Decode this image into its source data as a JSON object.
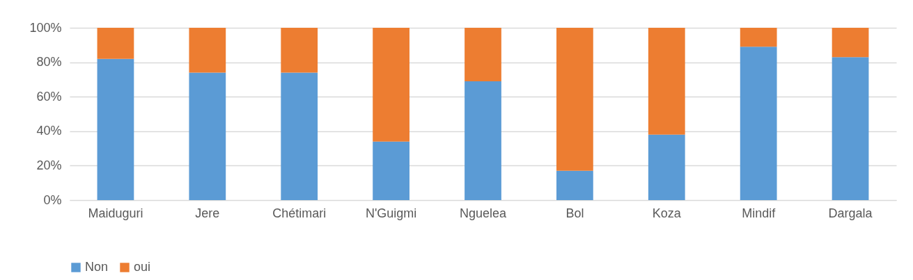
{
  "chart_data": {
    "type": "bar",
    "stacked": true,
    "categories": [
      "Maiduguri",
      "Jere",
      "Chétimari",
      "N'Guigmi",
      "Nguelea",
      "Bol",
      "Koza",
      "Mindif",
      "Dargala"
    ],
    "series": [
      {
        "name": "Non",
        "color": "#5b9bd5",
        "values": [
          82,
          74,
          74,
          34,
          69,
          17,
          38,
          89,
          83
        ]
      },
      {
        "name": "oui",
        "color": "#ed7d31",
        "values": [
          18,
          26,
          26,
          66,
          31,
          83,
          62,
          11,
          17
        ]
      }
    ],
    "ylim": [
      0,
      100
    ],
    "yticks": [
      {
        "value": 0,
        "label": "0%"
      },
      {
        "value": 20,
        "label": "20%"
      },
      {
        "value": 40,
        "label": "40%"
      },
      {
        "value": 60,
        "label": "60%"
      },
      {
        "value": 80,
        "label": "80%"
      },
      {
        "value": 100,
        "label": "100%"
      }
    ],
    "grid": "y",
    "legend": "bottom"
  }
}
